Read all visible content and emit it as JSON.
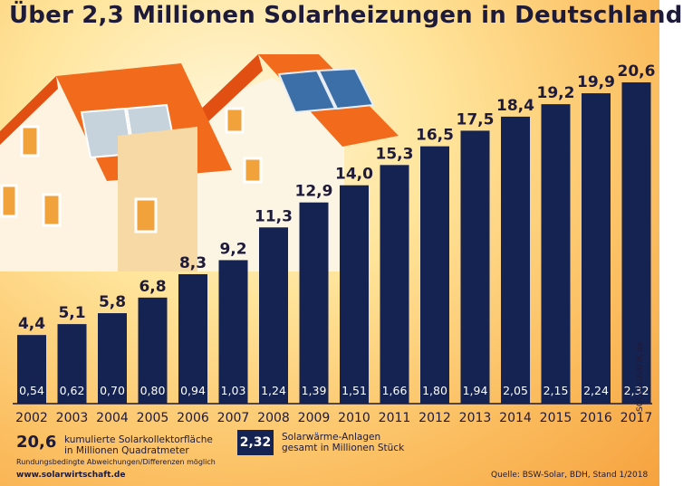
{
  "title": "Über 2,3 Millionen Solarheizungen in Deutschland",
  "chart_data": {
    "type": "bar",
    "title": "Über 2,3 Millionen Solarheizungen in Deutschland",
    "categories": [
      "2002",
      "2003",
      "2004",
      "2005",
      "2006",
      "2007",
      "2008",
      "2009",
      "2010",
      "2011",
      "2012",
      "2013",
      "2014",
      "2015",
      "2016",
      "2017"
    ],
    "series": [
      {
        "name": "kumulierte Solarkollektorfläche in Millionen Quadratmeter",
        "values": [
          4.4,
          5.1,
          5.8,
          6.8,
          8.3,
          9.2,
          11.3,
          12.9,
          14.0,
          15.3,
          16.5,
          17.5,
          18.4,
          19.2,
          19.9,
          20.6
        ],
        "labels": [
          "4,4",
          "5,1",
          "5,8",
          "6,8",
          "8,3",
          "9,2",
          "11,3",
          "12,9",
          "14,0",
          "15,3",
          "16,5",
          "17,5",
          "18,4",
          "19,2",
          "19,9",
          "20,6"
        ]
      },
      {
        "name": "Solarwärme-Anlagen gesamt in Millionen Stück",
        "values": [
          0.54,
          0.62,
          0.7,
          0.8,
          0.94,
          1.03,
          1.24,
          1.39,
          1.51,
          1.66,
          1.8,
          1.94,
          2.05,
          2.15,
          2.24,
          2.32
        ],
        "labels": [
          "0,54",
          "0,62",
          "0,70",
          "0,80",
          "0,94",
          "1,03",
          "1,24",
          "1,39",
          "1,51",
          "1,66",
          "1,80",
          "1,94",
          "2,05",
          "2,15",
          "2,24",
          "2,32"
        ]
      }
    ],
    "xlabel": "",
    "ylabel": "",
    "ylim": [
      0,
      20.6
    ],
    "colors": {
      "bar": "#152352",
      "text": "#1d1a3a"
    }
  },
  "legend": {
    "area_example": "20,6",
    "area_line1": "kumulierte Solarkollektorfläche",
    "area_line2": "in Millionen Quadratmeter",
    "units_example": "2,32",
    "units_line1": "Solarwärme-Anlagen",
    "units_line2": "gesamt in Millionen Stück"
  },
  "note": "Rundungsbedingte Abweichungen/Differenzen möglich",
  "website": "www.solarwirtschaft.de",
  "source": "Quelle: BSW-Solar, BDH, Stand 1/2018",
  "watermark": "SOLARGRAFIK.de"
}
